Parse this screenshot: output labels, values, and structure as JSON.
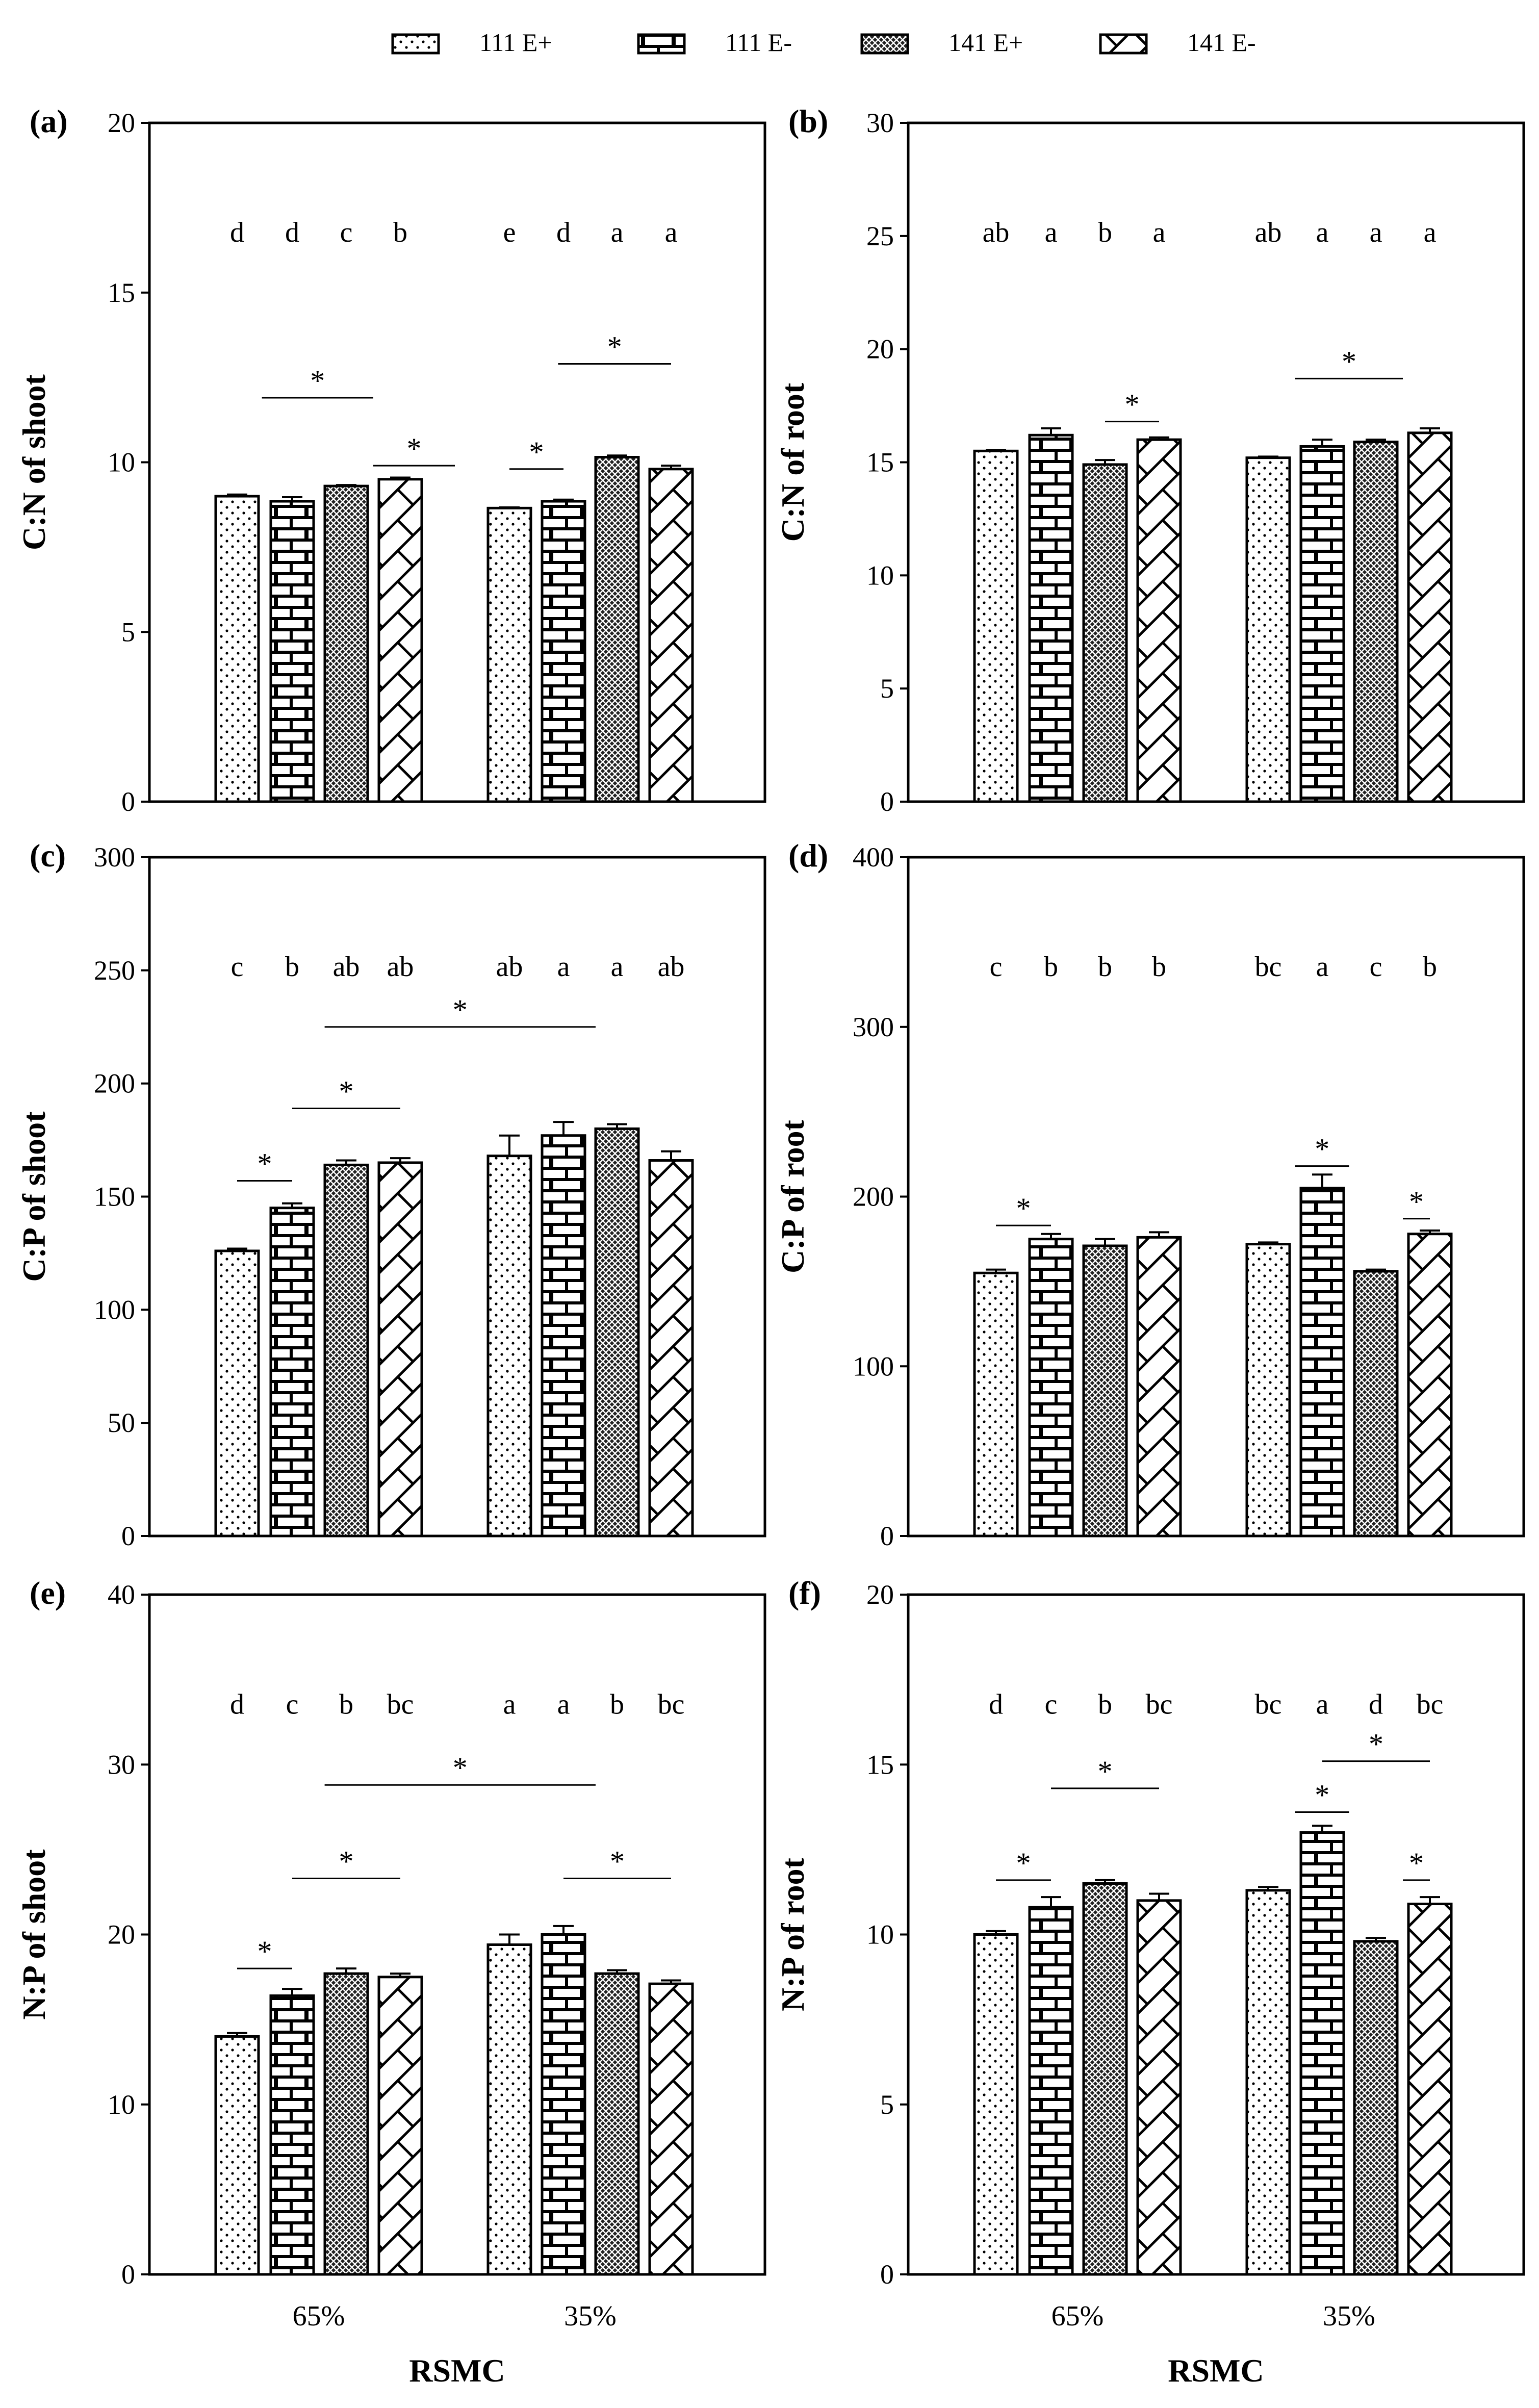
{
  "chart_data": {
    "type": "bar",
    "categories": [
      "65%",
      "35%"
    ],
    "xlabel": "RSMC",
    "legend": {
      "placement": "top-center",
      "entries": [
        {
          "name": "111 E+",
          "pattern": "dots"
        },
        {
          "name": "111 E-",
          "pattern": "bricks"
        },
        {
          "name": "141 E+",
          "pattern": "dense-crosshatch"
        },
        {
          "name": "141 E-",
          "pattern": "diagonal-crosshatch"
        }
      ]
    },
    "panels": [
      {
        "label": "(a)",
        "ylabel": "C:N of shoot",
        "ylim": [
          0,
          20
        ],
        "ystep": 5,
        "series": [
          {
            "name": "111 E+",
            "values": [
              9.0,
              8.65
            ],
            "errors": [
              0.05,
              0.02
            ],
            "letters": [
              "d",
              "e"
            ]
          },
          {
            "name": "111 E-",
            "values": [
              8.85,
              8.85
            ],
            "errors": [
              0.12,
              0.05
            ],
            "letters": [
              "d",
              "d"
            ]
          },
          {
            "name": "141 E+",
            "values": [
              9.3,
              10.15
            ],
            "errors": [
              0.03,
              0.05
            ],
            "letters": [
              "c",
              "a"
            ]
          },
          {
            "name": "141 E-",
            "values": [
              9.5,
              9.8
            ],
            "errors": [
              0.05,
              0.1
            ],
            "letters": [
              "b",
              "a"
            ]
          }
        ],
        "significance": [
          {
            "from": 0.45,
            "to": 2.5,
            "y": 11.9,
            "mark": "*"
          },
          {
            "from": 2.5,
            "to": 3.5,
            "y": 9.9,
            "mark": "*"
          },
          {
            "from": 4.0,
            "to": 5.0,
            "y": 9.8,
            "mark": "*"
          },
          {
            "from": 4.9,
            "to": 7.0,
            "y": 12.9,
            "mark": "*"
          }
        ]
      },
      {
        "label": "(b)",
        "ylabel": "C:N of root",
        "ylim": [
          0,
          30
        ],
        "ystep": 5,
        "series": [
          {
            "name": "111 E+",
            "values": [
              15.5,
              15.2
            ],
            "errors": [
              0.05,
              0.05
            ],
            "letters": [
              "ab",
              "ab"
            ]
          },
          {
            "name": "111 E-",
            "values": [
              16.2,
              15.7
            ],
            "errors": [
              0.3,
              0.3
            ],
            "letters": [
              "a",
              "a"
            ]
          },
          {
            "name": "141 E+",
            "values": [
              14.9,
              15.9
            ],
            "errors": [
              0.2,
              0.1
            ],
            "letters": [
              "b",
              "a"
            ]
          },
          {
            "name": "141 E-",
            "values": [
              16.0,
              16.3
            ],
            "errors": [
              0.1,
              0.2
            ],
            "letters": [
              "a",
              "a"
            ]
          }
        ],
        "significance": [
          {
            "from": 2.0,
            "to": 3.0,
            "y": 16.8,
            "mark": "*"
          },
          {
            "from": 4.5,
            "to": 6.5,
            "y": 18.7,
            "mark": "*"
          }
        ]
      },
      {
        "label": "(c)",
        "ylabel": "C:P of shoot",
        "ylim": [
          0,
          300
        ],
        "ystep": 50,
        "series": [
          {
            "name": "111 E+",
            "values": [
              126,
              168
            ],
            "errors": [
              1,
              9
            ],
            "letters": [
              "c",
              "ab"
            ]
          },
          {
            "name": "111 E-",
            "values": [
              145,
              177
            ],
            "errors": [
              2,
              6
            ],
            "letters": [
              "b",
              "a"
            ]
          },
          {
            "name": "141 E+",
            "values": [
              164,
              180
            ],
            "errors": [
              2,
              2
            ],
            "letters": [
              "ab",
              "a"
            ]
          },
          {
            "name": "141 E-",
            "values": [
              165,
              166
            ],
            "errors": [
              2,
              4
            ],
            "letters": [
              "ab",
              "ab"
            ]
          }
        ],
        "significance": [
          {
            "from": 0.0,
            "to": 1.0,
            "y": 157,
            "mark": "*"
          },
          {
            "from": 1.0,
            "to": 3.0,
            "y": 189,
            "mark": "*"
          },
          {
            "from": 1.6,
            "to": 5.6,
            "y": 225,
            "mark": "*"
          }
        ]
      },
      {
        "label": "(d)",
        "ylabel": "C:P of root",
        "ylim": [
          0,
          400
        ],
        "ystep": 100,
        "series": [
          {
            "name": "111 E+",
            "values": [
              155,
              172
            ],
            "errors": [
              2,
              1
            ],
            "letters": [
              "c",
              "bc"
            ]
          },
          {
            "name": "111 E-",
            "values": [
              175,
              205
            ],
            "errors": [
              3,
              8
            ],
            "letters": [
              "b",
              "a"
            ]
          },
          {
            "name": "141 E+",
            "values": [
              171,
              156
            ],
            "errors": [
              4,
              1
            ],
            "letters": [
              "b",
              "c"
            ]
          },
          {
            "name": "141 E-",
            "values": [
              176,
              178
            ],
            "errors": [
              3,
              2
            ],
            "letters": [
              "b",
              "b"
            ]
          }
        ],
        "significance": [
          {
            "from": 0.0,
            "to": 1.0,
            "y": 183,
            "mark": "*"
          },
          {
            "from": 4.5,
            "to": 5.5,
            "y": 218,
            "mark": "*"
          },
          {
            "from": 6.5,
            "to": 7.5,
            "y": 187,
            "mark": "*"
          }
        ]
      },
      {
        "label": "(e)",
        "ylabel": "N:P of shoot",
        "ylim": [
          0,
          40
        ],
        "ystep": 10,
        "series": [
          {
            "name": "111 E+",
            "values": [
              14.0,
              19.4
            ],
            "errors": [
              0.2,
              0.6
            ],
            "letters": [
              "d",
              "a"
            ]
          },
          {
            "name": "111 E-",
            "values": [
              16.4,
              20.0
            ],
            "errors": [
              0.4,
              0.5
            ],
            "letters": [
              "c",
              "a"
            ]
          },
          {
            "name": "141 E+",
            "values": [
              17.7,
              17.7
            ],
            "errors": [
              0.3,
              0.2
            ],
            "letters": [
              "b",
              "b"
            ]
          },
          {
            "name": "141 E-",
            "values": [
              17.5,
              17.1
            ],
            "errors": [
              0.2,
              0.2
            ],
            "letters": [
              "bc",
              "bc"
            ]
          }
        ],
        "significance": [
          {
            "from": 0.0,
            "to": 1.0,
            "y": 18.0,
            "mark": "*"
          },
          {
            "from": 1.0,
            "to": 3.0,
            "y": 23.3,
            "mark": "*"
          },
          {
            "from": 1.6,
            "to": 5.6,
            "y": 28.8,
            "mark": "*"
          },
          {
            "from": 5.0,
            "to": 7.0,
            "y": 23.3,
            "mark": "*"
          }
        ]
      },
      {
        "label": "(f)",
        "ylabel": "N:P of root",
        "ylim": [
          0,
          20
        ],
        "ystep": 5,
        "series": [
          {
            "name": "111 E+",
            "values": [
              10.0,
              11.3
            ],
            "errors": [
              0.1,
              0.1
            ],
            "letters": [
              "d",
              "bc"
            ]
          },
          {
            "name": "111 E-",
            "values": [
              10.8,
              13.0
            ],
            "errors": [
              0.3,
              0.2
            ],
            "letters": [
              "c",
              "a"
            ]
          },
          {
            "name": "141 E+",
            "values": [
              11.5,
              9.8
            ],
            "errors": [
              0.1,
              0.1
            ],
            "letters": [
              "b",
              "d"
            ]
          },
          {
            "name": "141 E-",
            "values": [
              11.0,
              10.9
            ],
            "errors": [
              0.2,
              0.2
            ],
            "letters": [
              "bc",
              "bc"
            ]
          }
        ],
        "significance": [
          {
            "from": 0.0,
            "to": 1.0,
            "y": 11.6,
            "mark": "*"
          },
          {
            "from": 1.0,
            "to": 3.0,
            "y": 14.3,
            "mark": "*"
          },
          {
            "from": 4.5,
            "to": 5.5,
            "y": 13.6,
            "mark": "*"
          },
          {
            "from": 5.0,
            "to": 7.0,
            "y": 15.1,
            "mark": "*"
          },
          {
            "from": 6.5,
            "to": 7.5,
            "y": 11.6,
            "mark": "*"
          }
        ]
      }
    ]
  }
}
